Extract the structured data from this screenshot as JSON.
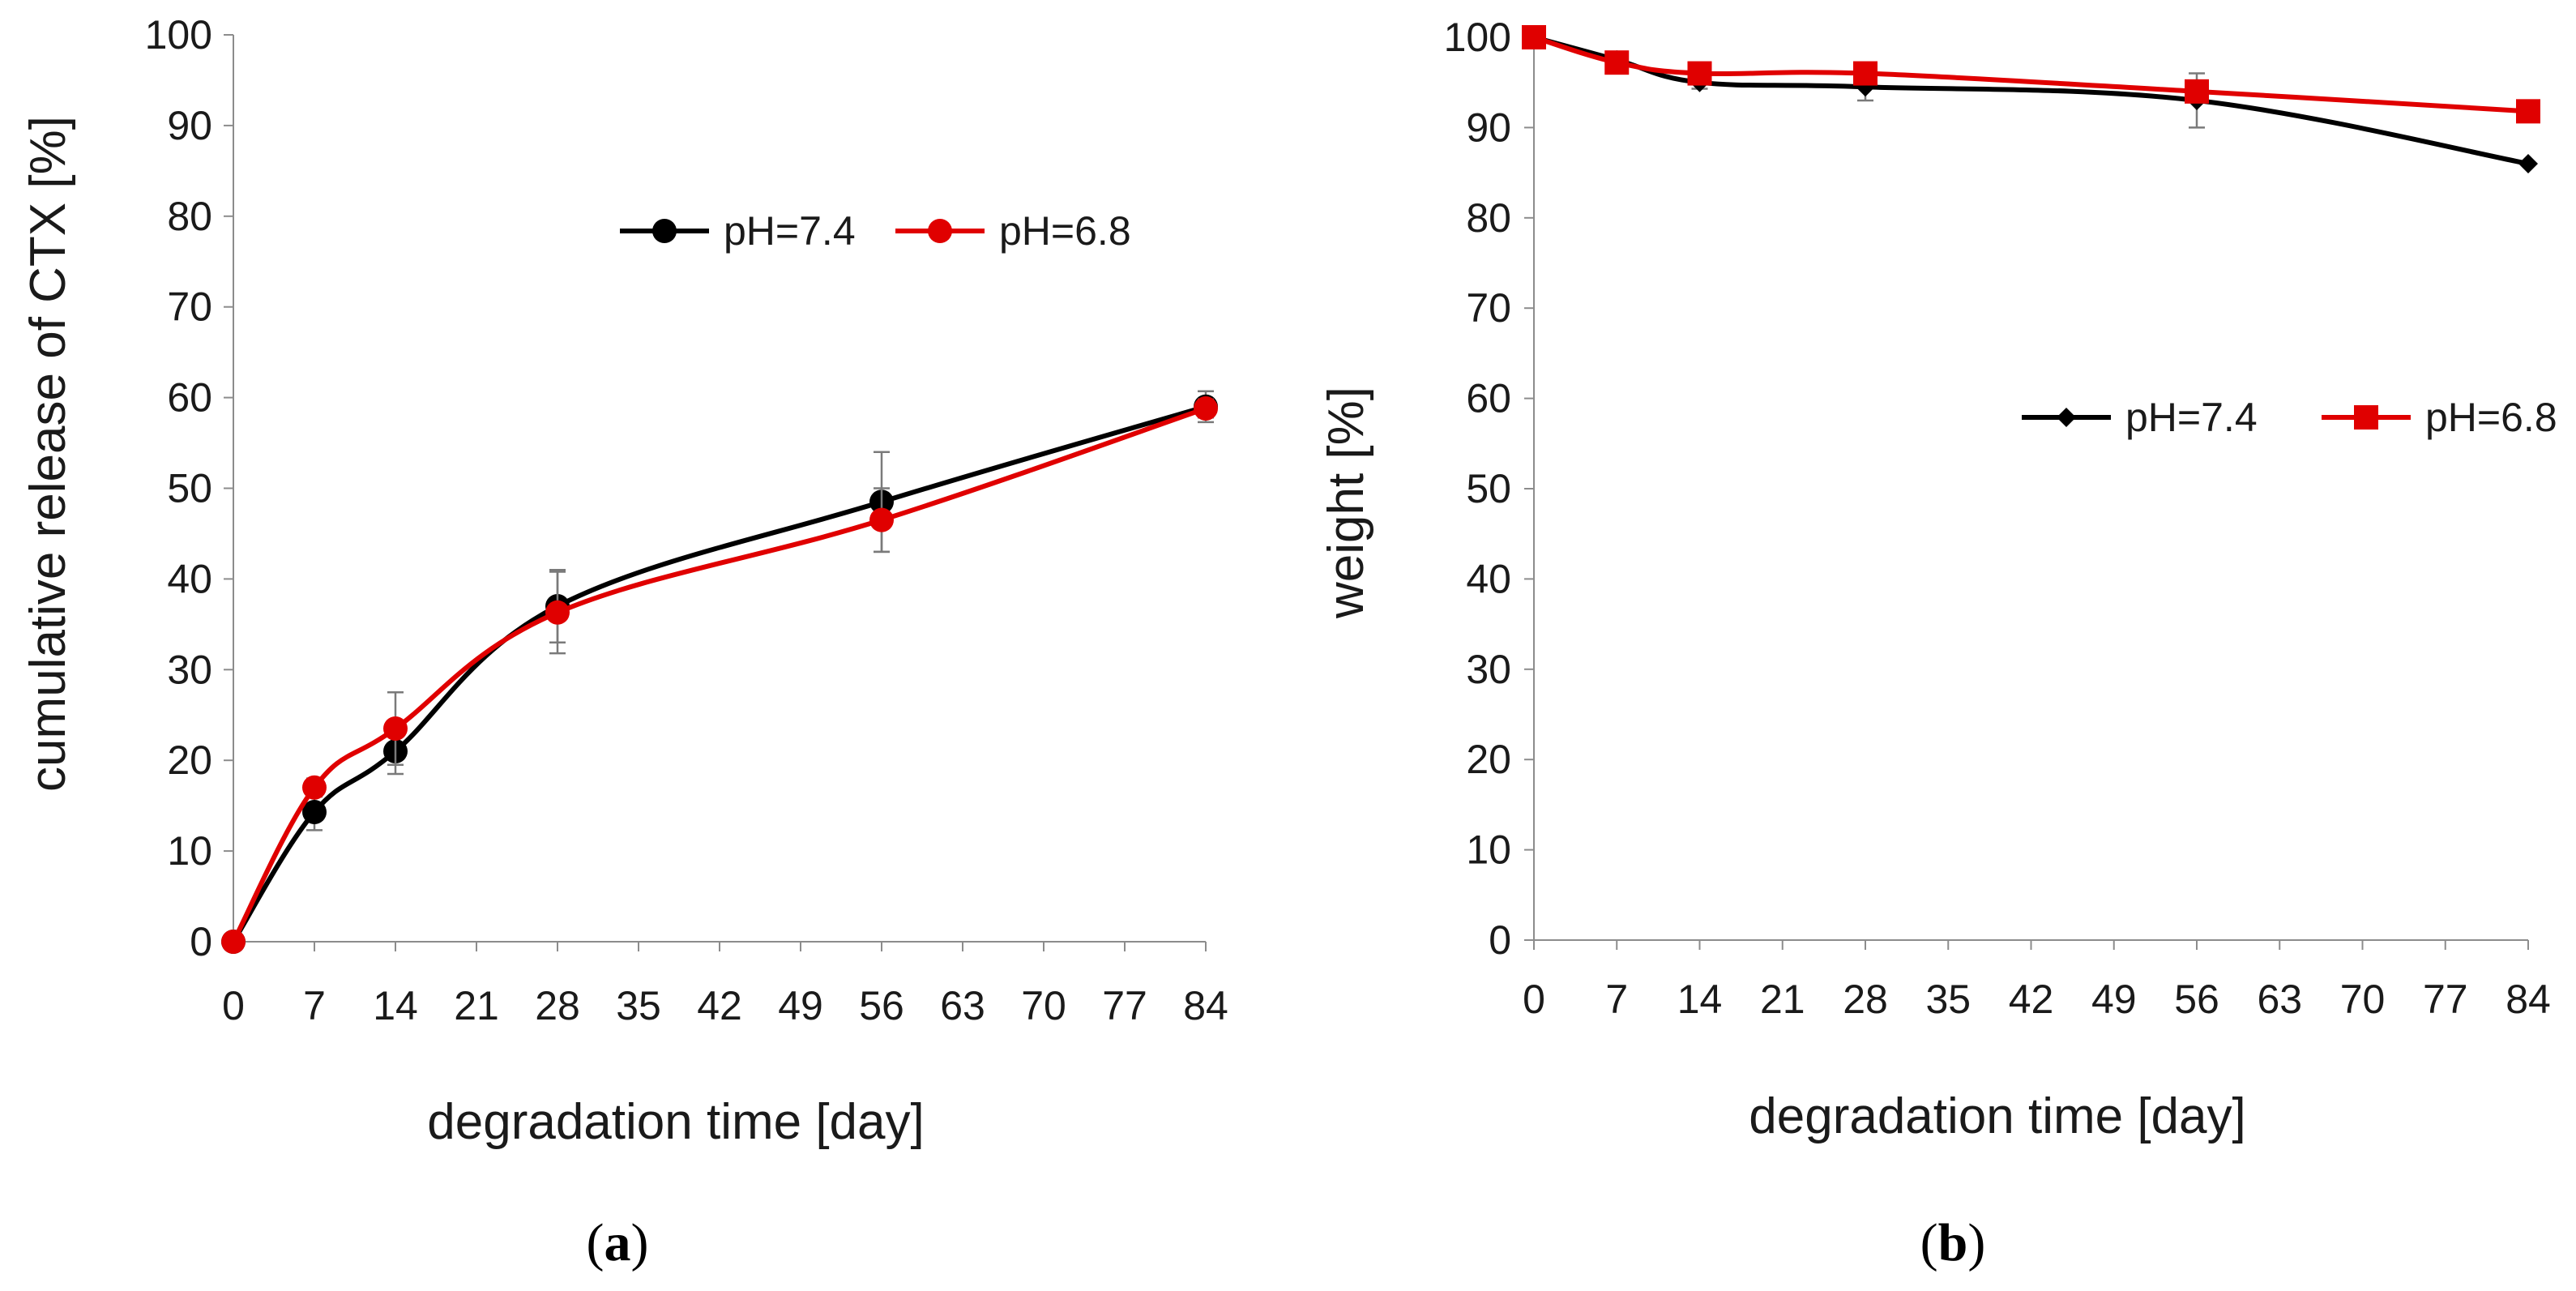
{
  "chart_data": [
    {
      "id": "a",
      "type": "line",
      "panel_label": "a",
      "xlabel": "degradation time [day]",
      "ylabel": "cumulative release of CTX [%]",
      "xlim": [
        0,
        84
      ],
      "ylim": [
        0,
        100
      ],
      "x_ticks": [
        0,
        7,
        14,
        21,
        28,
        35,
        42,
        49,
        56,
        63,
        70,
        77,
        84
      ],
      "y_ticks": [
        0,
        10,
        20,
        30,
        40,
        50,
        60,
        70,
        80,
        90,
        100
      ],
      "grid": false,
      "legend_position": "top-right",
      "x": [
        0,
        7,
        14,
        28,
        56,
        84
      ],
      "series": [
        {
          "name": "pH=7.4",
          "color": "#000000",
          "marker": "circle",
          "values": [
            0,
            14.3,
            21,
            37,
            48.5,
            59
          ],
          "error": [
            0,
            2,
            2.5,
            4,
            5.5,
            1.7
          ]
        },
        {
          "name": "pH=6.8",
          "color": "#e00000",
          "marker": "circle",
          "values": [
            0,
            17,
            23.5,
            36.3,
            46.5,
            58.8
          ],
          "error": [
            0,
            1,
            4,
            4.5,
            3.5,
            1
          ]
        }
      ]
    },
    {
      "id": "b",
      "type": "line",
      "panel_label": "b",
      "xlabel": "degradation time [day]",
      "ylabel": "weight [%]",
      "xlim": [
        0,
        84
      ],
      "ylim": [
        0,
        100
      ],
      "x_ticks": [
        0,
        7,
        14,
        21,
        28,
        35,
        42,
        49,
        56,
        63,
        70,
        77,
        84
      ],
      "y_ticks": [
        0,
        10,
        20,
        30,
        40,
        50,
        60,
        70,
        80,
        90,
        100
      ],
      "grid": false,
      "legend_position": "right",
      "x": [
        0,
        7,
        14,
        28,
        56,
        84
      ],
      "series": [
        {
          "name": "pH=7.4",
          "color": "#000000",
          "marker": "diamond",
          "values": [
            100,
            97.5,
            95,
            94.5,
            93,
            86
          ],
          "error": [
            0,
            0.5,
            0.7,
            1.5,
            3,
            0
          ]
        },
        {
          "name": "pH=6.8",
          "color": "#e00000",
          "marker": "square",
          "values": [
            100,
            97.2,
            96,
            96,
            94,
            91.8
          ],
          "error": [
            0,
            0.5,
            0.5,
            0.8,
            1.2,
            0.5
          ]
        }
      ]
    }
  ]
}
